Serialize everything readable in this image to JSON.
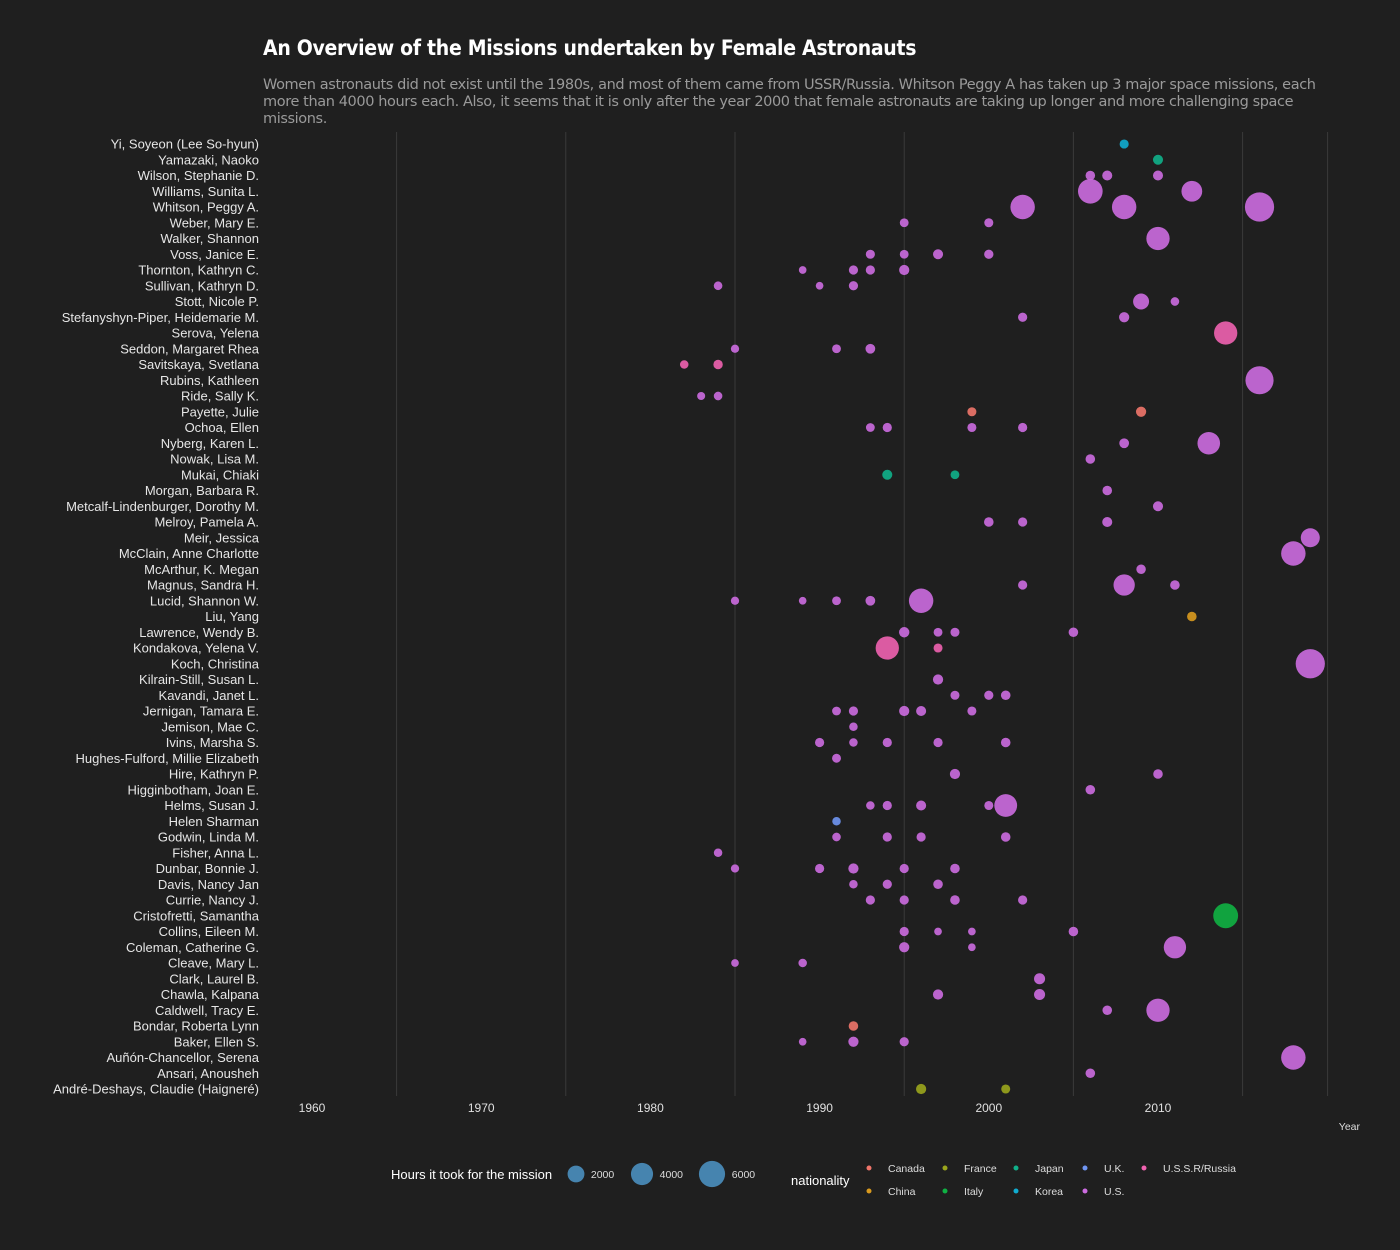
{
  "chart_data": {
    "type": "scatter",
    "title": "An Overview of the Missions undertaken by Female Astronauts",
    "subtitle": "Women astronauts did not exist until the 1980s, and most of them came from USSR/Russia. Whitson Peggy A has taken up 3 major space missions, each more than 4000 hours each. Also, it seems that it is only after the year 2000 that female astronauts are taking up longer and more challenging space missions.",
    "xlabel": "Year",
    "xlim": [
      1955,
      2020
    ],
    "x_ticks": [
      1960,
      1970,
      1980,
      1990,
      2000,
      2010
    ],
    "size_legend_title": "Hours it took for the mission",
    "size_legend": [
      2000,
      4000,
      6000
    ],
    "color_legend_title": "nationality",
    "nationalities": [
      {
        "name": "Canada",
        "color": "#f0756a"
      },
      {
        "name": "China",
        "color": "#d99a1e"
      },
      {
        "name": "France",
        "color": "#9aa51c"
      },
      {
        "name": "Italy",
        "color": "#0fb143"
      },
      {
        "name": "Japan",
        "color": "#10b08a"
      },
      {
        "name": "Korea",
        "color": "#10acd0"
      },
      {
        "name": "U.K.",
        "color": "#6f95f2"
      },
      {
        "name": "U.S.",
        "color": "#cc6ce0"
      },
      {
        "name": "U.S.S.R/Russia",
        "color": "#f062b0"
      }
    ],
    "astronauts": [
      {
        "name": "Yi, Soyeon (Lee So-hyun)",
        "nat": "Korea",
        "m": [
          [
            2008,
            250
          ]
        ]
      },
      {
        "name": "Yamazaki, Naoko",
        "nat": "Japan",
        "m": [
          [
            2010,
            360
          ]
        ]
      },
      {
        "name": "Wilson, Stephanie D.",
        "nat": "U.S.",
        "m": [
          [
            2006,
            300
          ],
          [
            2007,
            360
          ],
          [
            2010,
            360
          ]
        ]
      },
      {
        "name": "Williams, Sunita L.",
        "nat": "U.S.",
        "m": [
          [
            2006,
            4600
          ],
          [
            2012,
            3000
          ]
        ]
      },
      {
        "name": "Whitson, Peggy A.",
        "nat": "U.S.",
        "m": [
          [
            2002,
            4500
          ],
          [
            2008,
            4500
          ],
          [
            2016,
            6900
          ]
        ]
      },
      {
        "name": "Weber, Mary E.",
        "nat": "U.S.",
        "m": [
          [
            1995,
            220
          ],
          [
            2000,
            240
          ]
        ]
      },
      {
        "name": "Walker, Shannon",
        "nat": "U.S.",
        "m": [
          [
            2010,
            4000
          ]
        ]
      },
      {
        "name": "Voss, Janice E.",
        "nat": "U.S.",
        "m": [
          [
            1993,
            250
          ],
          [
            1995,
            220
          ],
          [
            1997,
            360
          ],
          [
            2000,
            270
          ]
        ]
      },
      {
        "name": "Thornton, Kathryn C.",
        "nat": "U.S.",
        "m": [
          [
            1989,
            120
          ],
          [
            1992,
            260
          ],
          [
            1993,
            260
          ],
          [
            1995,
            380
          ]
        ]
      },
      {
        "name": "Sullivan, Kathryn D.",
        "nat": "U.S.",
        "m": [
          [
            1984,
            200
          ],
          [
            1990,
            120
          ],
          [
            1992,
            260
          ]
        ]
      },
      {
        "name": "Stott, Nicole P.",
        "nat": "U.S.",
        "m": [
          [
            2009,
            1500
          ],
          [
            2011,
            200
          ]
        ]
      },
      {
        "name": "Stefanyshyn-Piper, Heidemarie M.",
        "nat": "U.S.",
        "m": [
          [
            2002,
            260
          ],
          [
            2008,
            380
          ]
        ]
      },
      {
        "name": "Serova, Yelena",
        "nat": "U.S.S.R/Russia",
        "m": [
          [
            2014,
            4000
          ]
        ]
      },
      {
        "name": "Seddon, Margaret Rhea",
        "nat": "U.S.",
        "m": [
          [
            1985,
            170
          ],
          [
            1991,
            220
          ],
          [
            1993,
            320
          ]
        ]
      },
      {
        "name": "Savitskaya, Svetlana",
        "nat": "U.S.S.R/Russia",
        "m": [
          [
            1982,
            190
          ],
          [
            1984,
            280
          ]
        ]
      },
      {
        "name": "Rubins, Kathleen",
        "nat": "U.S.",
        "m": [
          [
            2016,
            6300
          ]
        ]
      },
      {
        "name": "Ride, Sally K.",
        "nat": "U.S.",
        "m": [
          [
            1983,
            150
          ],
          [
            1984,
            200
          ]
        ]
      },
      {
        "name": "Payette, Julie",
        "nat": "Canada",
        "m": [
          [
            1999,
            240
          ],
          [
            2009,
            380
          ]
        ]
      },
      {
        "name": "Ochoa, Ellen",
        "nat": "U.S.",
        "m": [
          [
            1993,
            220
          ],
          [
            1994,
            260
          ],
          [
            1999,
            240
          ],
          [
            2002,
            260
          ]
        ]
      },
      {
        "name": "Nyberg, Karen L.",
        "nat": "U.S.",
        "m": [
          [
            2008,
            320
          ],
          [
            2013,
            3700
          ]
        ]
      },
      {
        "name": "Nowak, Lisa M.",
        "nat": "U.S.",
        "m": [
          [
            2006,
            300
          ]
        ]
      },
      {
        "name": "Mukai, Chiaki",
        "nat": "Japan",
        "m": [
          [
            1994,
            360
          ],
          [
            1998,
            220
          ]
        ]
      },
      {
        "name": "Morgan, Barbara R.",
        "nat": "U.S.",
        "m": [
          [
            2007,
            300
          ]
        ]
      },
      {
        "name": "Metcalf-Lindenburger, Dorothy M.",
        "nat": "U.S.",
        "m": [
          [
            2010,
            360
          ]
        ]
      },
      {
        "name": "Melroy, Pamela A.",
        "nat": "U.S.",
        "m": [
          [
            2000,
            300
          ],
          [
            2002,
            260
          ],
          [
            2007,
            360
          ]
        ]
      },
      {
        "name": "Meir, Jessica",
        "nat": "U.S.",
        "m": [
          [
            2019,
            2400
          ]
        ]
      },
      {
        "name": "McClain, Anne Charlotte",
        "nat": "U.S.",
        "m": [
          [
            2018,
            4500
          ]
        ]
      },
      {
        "name": "McArthur, K. Megan",
        "nat": "U.S.",
        "m": [
          [
            2009,
            290
          ]
        ]
      },
      {
        "name": "Magnus, Sandra H.",
        "nat": "U.S.",
        "m": [
          [
            2002,
            260
          ],
          [
            2008,
            3200
          ],
          [
            2011,
            300
          ]
        ]
      },
      {
        "name": "Lucid, Shannon W.",
        "nat": "U.S.",
        "m": [
          [
            1985,
            170
          ],
          [
            1989,
            120
          ],
          [
            1991,
            220
          ],
          [
            1993,
            320
          ],
          [
            1996,
            4500
          ]
        ]
      },
      {
        "name": "Liu, Yang",
        "nat": "China",
        "m": [
          [
            2012,
            300
          ]
        ]
      },
      {
        "name": "Lawrence, Wendy B.",
        "nat": "U.S.",
        "m": [
          [
            1995,
            400
          ],
          [
            1997,
            220
          ],
          [
            1998,
            240
          ],
          [
            2005,
            300
          ]
        ]
      },
      {
        "name": "Kondakova, Yelena V.",
        "nat": "U.S.S.R/Russia",
        "m": [
          [
            1994,
            4000
          ],
          [
            1997,
            240
          ]
        ]
      },
      {
        "name": "Koch, Christina",
        "nat": "U.S.",
        "m": [
          [
            2019,
            6900
          ]
        ]
      },
      {
        "name": "Kilrain-Still, Susan L.",
        "nat": "U.S.",
        "m": [
          [
            1997,
            380
          ]
        ]
      },
      {
        "name": "Kavandi, Janet L.",
        "nat": "U.S.",
        "m": [
          [
            1998,
            240
          ],
          [
            2000,
            260
          ],
          [
            2001,
            300
          ]
        ]
      },
      {
        "name": "Jernigan, Tamara E.",
        "nat": "U.S.",
        "m": [
          [
            1991,
            220
          ],
          [
            1992,
            260
          ],
          [
            1995,
            380
          ],
          [
            1996,
            360
          ],
          [
            1999,
            240
          ]
        ]
      },
      {
        "name": "Jemison, Mae C.",
        "nat": "U.S.",
        "m": [
          [
            1992,
            190
          ]
        ]
      },
      {
        "name": "Ivins, Marsha S.",
        "nat": "U.S.",
        "m": [
          [
            1990,
            260
          ],
          [
            1992,
            190
          ],
          [
            1994,
            260
          ],
          [
            1997,
            260
          ],
          [
            2001,
            300
          ]
        ]
      },
      {
        "name": "Hughes-Fulford, Millie Elizabeth",
        "nat": "U.S.",
        "m": [
          [
            1991,
            230
          ]
        ]
      },
      {
        "name": "Hire, Kathryn P.",
        "nat": "U.S.",
        "m": [
          [
            1998,
            380
          ],
          [
            2010,
            300
          ]
        ]
      },
      {
        "name": "Higginbotham, Joan E.",
        "nat": "U.S.",
        "m": [
          [
            2006,
            300
          ]
        ]
      },
      {
        "name": "Helms, Susan J.",
        "nat": "U.S.",
        "m": [
          [
            1993,
            190
          ],
          [
            1994,
            260
          ],
          [
            1996,
            360
          ],
          [
            2000,
            240
          ],
          [
            2001,
            3800
          ]
        ]
      },
      {
        "name": "Helen Sharman",
        "nat": "U.K.",
        "m": [
          [
            1991,
            190
          ]
        ]
      },
      {
        "name": "Godwin, Linda M.",
        "nat": "U.S.",
        "m": [
          [
            1991,
            200
          ],
          [
            1994,
            260
          ],
          [
            1996,
            260
          ],
          [
            2001,
            300
          ]
        ]
      },
      {
        "name": "Fisher, Anna L.",
        "nat": "U.S.",
        "m": [
          [
            1984,
            190
          ]
        ]
      },
      {
        "name": "Dunbar, Bonnie J.",
        "nat": "U.S.",
        "m": [
          [
            1985,
            170
          ],
          [
            1990,
            260
          ],
          [
            1992,
            380
          ],
          [
            1995,
            260
          ],
          [
            1998,
            300
          ]
        ]
      },
      {
        "name": "Davis, Nancy Jan",
        "nat": "U.S.",
        "m": [
          [
            1992,
            190
          ],
          [
            1994,
            260
          ],
          [
            1997,
            300
          ]
        ]
      },
      {
        "name": "Currie, Nancy J.",
        "nat": "U.S.",
        "m": [
          [
            1993,
            260
          ],
          [
            1995,
            260
          ],
          [
            1998,
            300
          ],
          [
            2002,
            260
          ]
        ]
      },
      {
        "name": "Cristofretti, Samantha",
        "nat": "Italy",
        "m": [
          [
            2014,
            4700
          ]
        ]
      },
      {
        "name": "Collins, Eileen M.",
        "nat": "U.S.",
        "m": [
          [
            1995,
            260
          ],
          [
            1997,
            120
          ],
          [
            1999,
            120
          ],
          [
            2005,
            300
          ]
        ]
      },
      {
        "name": "Coleman, Catherine G.",
        "nat": "U.S.",
        "m": [
          [
            1995,
            380
          ],
          [
            1999,
            120
          ],
          [
            2011,
            3600
          ]
        ]
      },
      {
        "name": "Cleave, Mary L.",
        "nat": "U.S.",
        "m": [
          [
            1985,
            120
          ],
          [
            1989,
            190
          ]
        ]
      },
      {
        "name": "Clark, Laurel B.",
        "nat": "U.S.",
        "m": [
          [
            2003,
            500
          ]
        ]
      },
      {
        "name": "Chawla, Kalpana",
        "nat": "U.S.",
        "m": [
          [
            1997,
            380
          ],
          [
            2003,
            500
          ]
        ]
      },
      {
        "name": "Caldwell, Tracy E.",
        "nat": "U.S.",
        "m": [
          [
            2007,
            300
          ],
          [
            2010,
            4000
          ]
        ]
      },
      {
        "name": "Bondar, Roberta Lynn",
        "nat": "Canada",
        "m": [
          [
            1992,
            300
          ]
        ]
      },
      {
        "name": "Baker, Ellen S.",
        "nat": "U.S.",
        "m": [
          [
            1989,
            120
          ],
          [
            1992,
            380
          ],
          [
            1995,
            260
          ]
        ]
      },
      {
        "name": "Auñón-Chancellor, Serena",
        "nat": "U.S.",
        "m": [
          [
            2018,
            4500
          ]
        ]
      },
      {
        "name": "Ansari, Anousheh",
        "nat": "U.S.",
        "m": [
          [
            2006,
            300
          ]
        ]
      },
      {
        "name": "André-Deshays, Claudie (Haigneré)",
        "nat": "France",
        "m": [
          [
            1996,
            380
          ],
          [
            2001,
            240
          ]
        ]
      }
    ]
  }
}
